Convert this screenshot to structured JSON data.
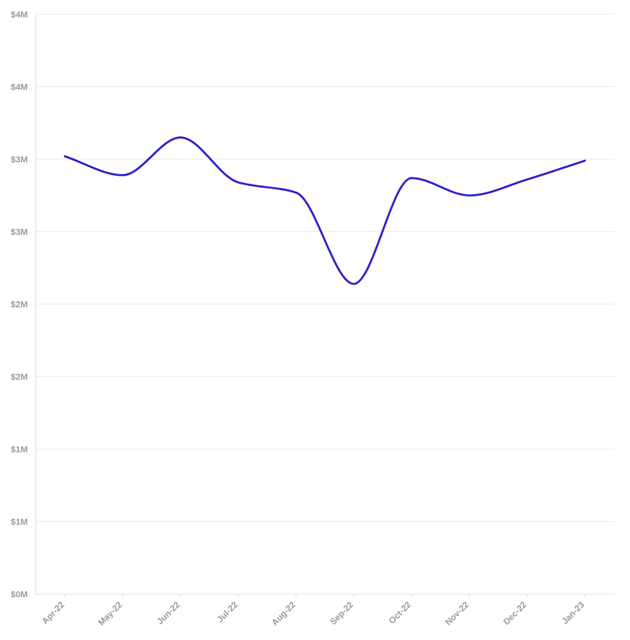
{
  "chart_data": {
    "type": "line",
    "title": "",
    "xlabel": "",
    "ylabel": "",
    "categories": [
      "Apr-22",
      "May-22",
      "Jun-22",
      "Jul-22",
      "Aug-22",
      "Sep-22",
      "Oct-22",
      "Nov-22",
      "Dec-22",
      "Jan-23"
    ],
    "y_ticks": [
      {
        "value": 0,
        "label": "$0M"
      },
      {
        "value": 0.5,
        "label": "$1M"
      },
      {
        "value": 1.0,
        "label": "$1M"
      },
      {
        "value": 1.5,
        "label": "$2M"
      },
      {
        "value": 2.0,
        "label": "$2M"
      },
      {
        "value": 2.5,
        "label": "$3M"
      },
      {
        "value": 3.0,
        "label": "$3M"
      },
      {
        "value": 3.5,
        "label": "$4M"
      },
      {
        "value": 4.0,
        "label": "$4M"
      }
    ],
    "ylim": [
      0,
      4.0
    ],
    "y_unit": "$M",
    "grid": true,
    "legend": "none",
    "series": [
      {
        "color": "#2b1fcc",
        "values": [
          3.02,
          2.89,
          3.15,
          2.84,
          2.77,
          2.14,
          2.87,
          2.75,
          2.86,
          2.99
        ]
      }
    ]
  }
}
